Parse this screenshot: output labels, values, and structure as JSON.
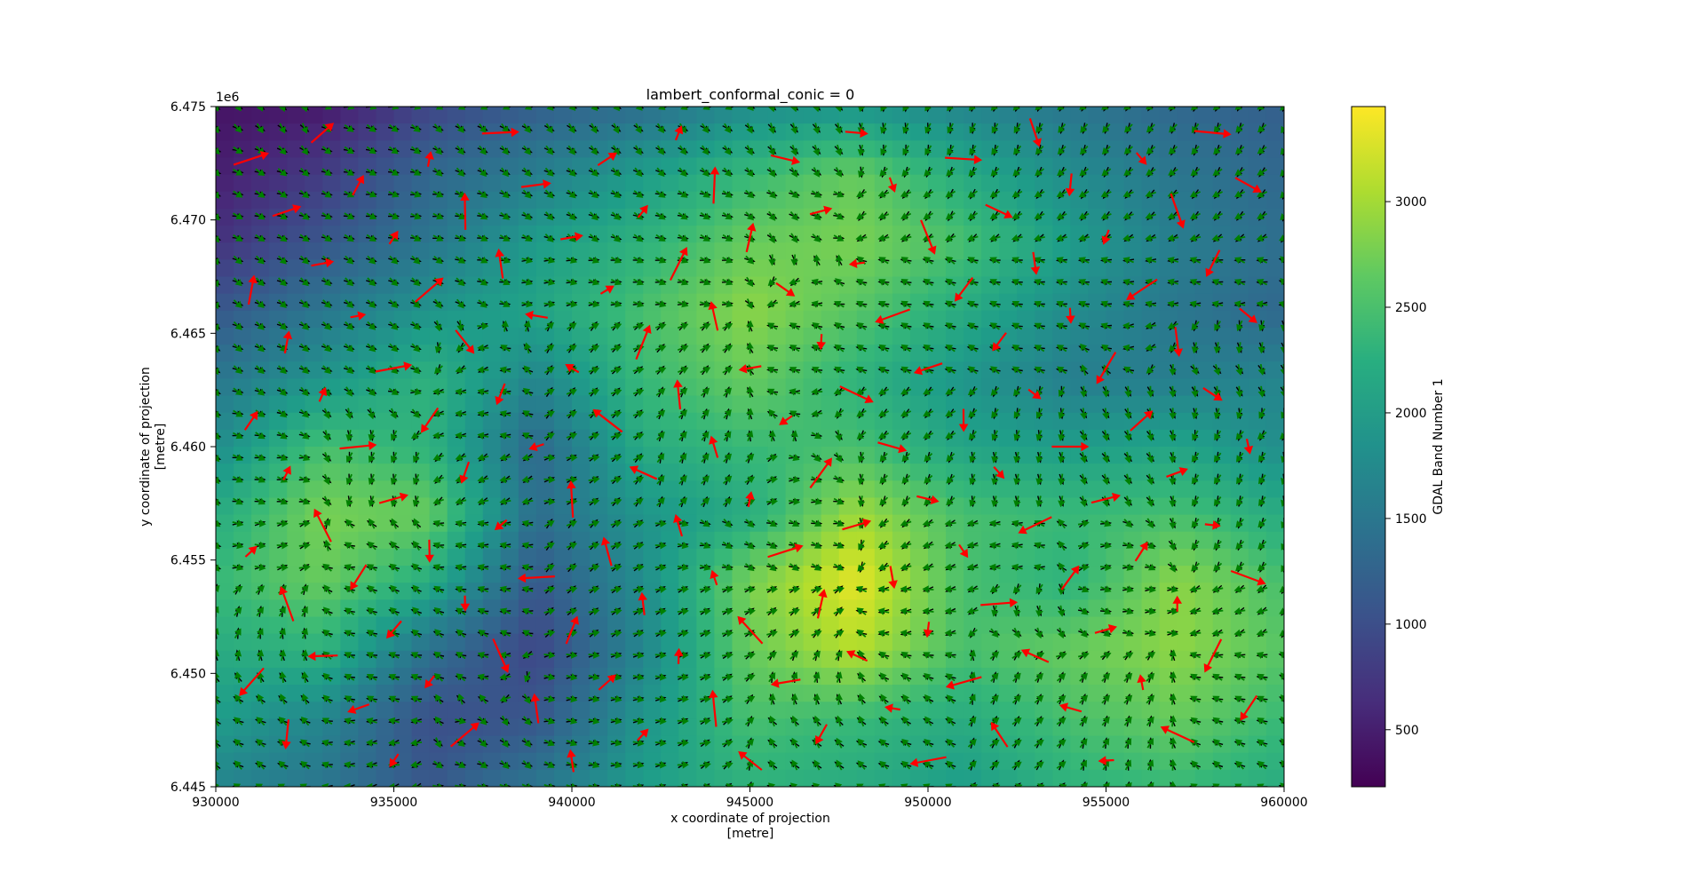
{
  "chart_data": {
    "type": "heatmap",
    "title": "lambert_conformal_conic = 0",
    "xlabel": "x coordinate of projection",
    "xunit": "[metre]",
    "ylabel": "y coordinate of projection",
    "yunit": "[metre]",
    "xlim": [
      930000,
      960000
    ],
    "ylim": [
      6445000,
      6475000
    ],
    "y_offset_label": "1e6",
    "x_ticks": [
      930000,
      935000,
      940000,
      945000,
      950000,
      955000,
      960000
    ],
    "x_tick_labels": [
      "930000",
      "935000",
      "940000",
      "945000",
      "950000",
      "955000",
      "960000"
    ],
    "y_ticks": [
      6445000,
      6450000,
      6455000,
      6460000,
      6465000,
      6470000,
      6475000
    ],
    "y_tick_labels": [
      "6.445",
      "6.450",
      "6.455",
      "6.460",
      "6.465",
      "6.470",
      "6.475"
    ],
    "colorbar": {
      "label": "GDAL Band Number 1",
      "range": [
        230,
        3450
      ],
      "ticks": [
        500,
        1000,
        1500,
        2000,
        2500,
        3000
      ],
      "tick_labels": [
        "500",
        "1000",
        "1500",
        "2000",
        "2500",
        "3000"
      ],
      "colormap": "viridis"
    },
    "heatmap_grid": {
      "x": [
        930000,
        933000,
        936000,
        939000,
        942000,
        945000,
        948000,
        951000,
        954000,
        957000,
        960000
      ],
      "y": [
        6475000,
        6472000,
        6469000,
        6466000,
        6463000,
        6460000,
        6457000,
        6454000,
        6451000,
        6448000,
        6445000
      ],
      "values": [
        [
          400,
          450,
          900,
          1200,
          1400,
          1800,
          1900,
          1700,
          1500,
          1300,
          1200
        ],
        [
          500,
          800,
          1300,
          1600,
          2000,
          2400,
          2700,
          2200,
          1800,
          1500,
          1300
        ],
        [
          700,
          1100,
          1500,
          2000,
          2300,
          2700,
          2800,
          2500,
          2000,
          1600,
          1400
        ],
        [
          1100,
          1500,
          1900,
          2100,
          2500,
          2900,
          2600,
          2200,
          1800,
          1500,
          1300
        ],
        [
          1500,
          1900,
          2300,
          1700,
          2400,
          2700,
          2300,
          1900,
          1600,
          1600,
          1700
        ],
        [
          1800,
          2500,
          2300,
          1300,
          2200,
          2400,
          2500,
          2100,
          2000,
          2100,
          1800
        ],
        [
          2200,
          2800,
          2700,
          1400,
          1900,
          2200,
          3000,
          2500,
          2400,
          2500,
          2200
        ],
        [
          2400,
          2700,
          2200,
          1100,
          1800,
          2800,
          3350,
          2500,
          2300,
          2900,
          2500
        ],
        [
          2200,
          2300,
          1400,
          900,
          1700,
          2700,
          3100,
          2500,
          2700,
          2900,
          2600
        ],
        [
          2000,
          1700,
          1000,
          1100,
          1900,
          2500,
          2400,
          2200,
          2500,
          2700,
          2400
        ],
        [
          1700,
          1500,
          1100,
          1500,
          2000,
          2300,
          2200,
          2000,
          2300,
          2400,
          2200
        ]
      ]
    },
    "quiver_layers": [
      {
        "name": "",
        "color": "#000000"
      },
      {
        "name": "",
        "color": "#008000"
      },
      {
        "name": "",
        "color": "#ff0000"
      }
    ],
    "grid": false,
    "legend": "none"
  }
}
